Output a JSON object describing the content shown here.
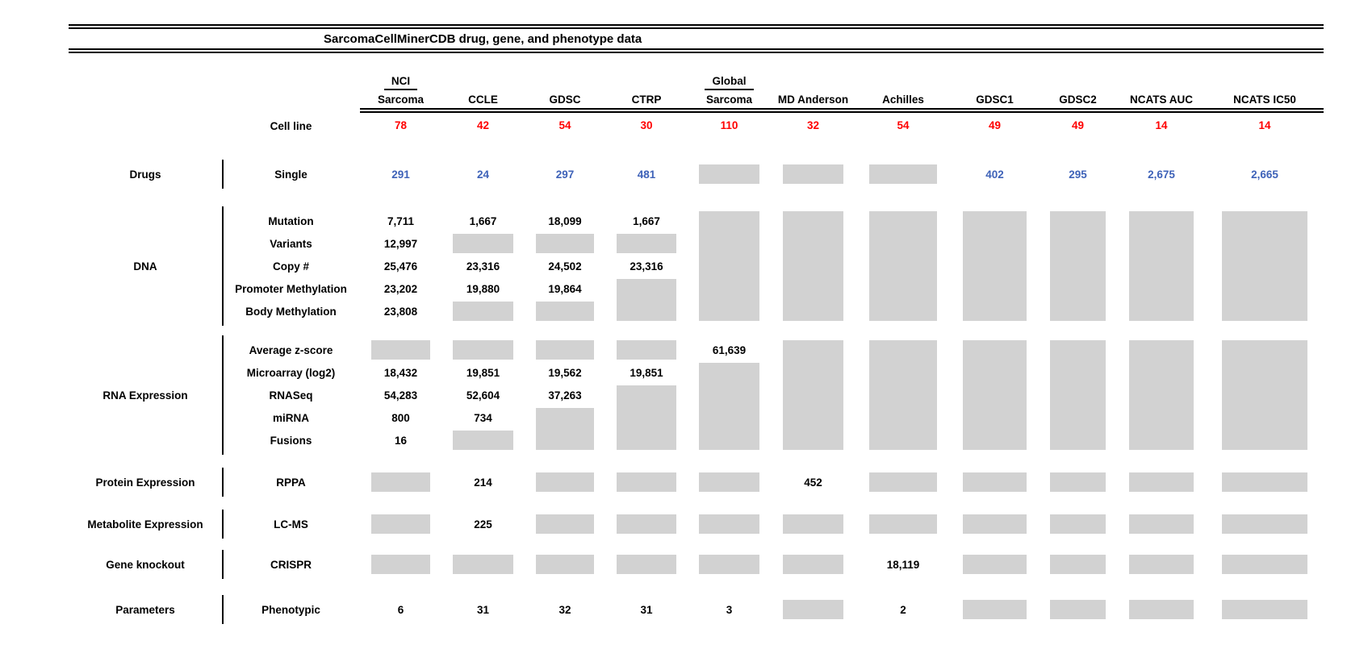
{
  "title": "SarcomaCellMinerCDB drug, gene, and phenotype data",
  "colors": {
    "cell_line_count_red": "#FF0000",
    "drug_count_blue": "#3E62B8",
    "availability_box_gray": "#D2D2D2"
  },
  "chart_data": {
    "type": "table",
    "title": "SarcomaCellMinerCDB drug, gene, and phenotype data",
    "cell_line_label": "Cell line",
    "columns": [
      {
        "group": "NCI",
        "name": "Sarcoma",
        "cell_lines": "78"
      },
      {
        "group": "",
        "name": "CCLE",
        "cell_lines": "42"
      },
      {
        "group": "",
        "name": "GDSC",
        "cell_lines": "54"
      },
      {
        "group": "",
        "name": "CTRP",
        "cell_lines": "30"
      },
      {
        "group": "Global",
        "name": "Sarcoma",
        "cell_lines": "110"
      },
      {
        "group": "",
        "name": "MD Anderson",
        "cell_lines": "32"
      },
      {
        "group": "",
        "name": "Achilles",
        "cell_lines": "54"
      },
      {
        "group": "",
        "name": "GDSC1",
        "cell_lines": "49"
      },
      {
        "group": "",
        "name": "GDSC2",
        "cell_lines": "49"
      },
      {
        "group": "",
        "name": "NCATS AUC",
        "cell_lines": "14"
      },
      {
        "group": "",
        "name": "NCATS IC50",
        "cell_lines": "14"
      }
    ],
    "sections": [
      {
        "category": "Drugs",
        "value_style": "blue",
        "rows": [
          {
            "label": "Single",
            "values": [
              "291",
              "24",
              "297",
              "481",
              null,
              null,
              null,
              "402",
              "295",
              "2,675",
              "2,665"
            ]
          }
        ],
        "boxes": [
          {
            "col": 4,
            "row": 0,
            "span": 1
          },
          {
            "col": 5,
            "row": 0,
            "span": 1
          },
          {
            "col": 6,
            "row": 0,
            "span": 1
          }
        ]
      },
      {
        "category": "DNA",
        "value_style": "black",
        "rows": [
          {
            "label": "Mutation",
            "values": [
              "7,711",
              "1,667",
              "18,099",
              "1,667",
              null,
              null,
              null,
              null,
              null,
              null,
              null
            ]
          },
          {
            "label": "Variants",
            "values": [
              "12,997",
              null,
              null,
              null,
              null,
              null,
              null,
              null,
              null,
              null,
              null
            ]
          },
          {
            "label": "Copy #",
            "values": [
              "25,476",
              "23,316",
              "24,502",
              "23,316",
              null,
              null,
              null,
              null,
              null,
              null,
              null
            ]
          },
          {
            "label": "Promoter Methylation",
            "values": [
              "23,202",
              "19,880",
              "19,864",
              null,
              null,
              null,
              null,
              null,
              null,
              null,
              null
            ]
          },
          {
            "label": "Body Methylation",
            "values": [
              "23,808",
              null,
              null,
              null,
              null,
              null,
              null,
              null,
              null,
              null,
              null
            ]
          }
        ],
        "boxes": [
          {
            "col": 1,
            "row": 1,
            "span": 1
          },
          {
            "col": 2,
            "row": 1,
            "span": 1
          },
          {
            "col": 3,
            "row": 1,
            "span": 1
          },
          {
            "col": 1,
            "row": 4,
            "span": 1
          },
          {
            "col": 2,
            "row": 4,
            "span": 1
          },
          {
            "col": 3,
            "row": 3,
            "span": 2
          },
          {
            "col": 4,
            "row": 0,
            "span": 5
          },
          {
            "col": 5,
            "row": 0,
            "span": 5
          },
          {
            "col": 6,
            "row": 0,
            "span": 5
          },
          {
            "col": 7,
            "row": 0,
            "span": 5
          },
          {
            "col": 8,
            "row": 0,
            "span": 5
          },
          {
            "col": 9,
            "row": 0,
            "span": 5
          },
          {
            "col": 10,
            "row": 0,
            "span": 5
          }
        ]
      },
      {
        "category": "RNA Expression",
        "value_style": "black",
        "rows": [
          {
            "label": "Average z-score",
            "values": [
              null,
              null,
              null,
              null,
              "61,639",
              null,
              null,
              null,
              null,
              null,
              null
            ]
          },
          {
            "label": "Microarray (log2)",
            "values": [
              "18,432",
              "19,851",
              "19,562",
              "19,851",
              null,
              null,
              null,
              null,
              null,
              null,
              null
            ]
          },
          {
            "label": "RNASeq",
            "values": [
              "54,283",
              "52,604",
              "37,263",
              null,
              null,
              null,
              null,
              null,
              null,
              null,
              null
            ]
          },
          {
            "label": "miRNA",
            "values": [
              "800",
              "734",
              null,
              null,
              null,
              null,
              null,
              null,
              null,
              null,
              null
            ]
          },
          {
            "label": "Fusions",
            "values": [
              "16",
              null,
              null,
              null,
              null,
              null,
              null,
              null,
              null,
              null,
              null
            ]
          }
        ],
        "boxes": [
          {
            "col": 0,
            "row": 0,
            "span": 1
          },
          {
            "col": 1,
            "row": 0,
            "span": 1
          },
          {
            "col": 2,
            "row": 0,
            "span": 1
          },
          {
            "col": 3,
            "row": 0,
            "span": 1
          },
          {
            "col": 1,
            "row": 4,
            "span": 1
          },
          {
            "col": 2,
            "row": 3,
            "span": 2
          },
          {
            "col": 3,
            "row": 2,
            "span": 3
          },
          {
            "col": 4,
            "row": 1,
            "span": 4
          },
          {
            "col": 5,
            "row": 0,
            "span": 5
          },
          {
            "col": 6,
            "row": 0,
            "span": 5
          },
          {
            "col": 7,
            "row": 0,
            "span": 5
          },
          {
            "col": 8,
            "row": 0,
            "span": 5
          },
          {
            "col": 9,
            "row": 0,
            "span": 5
          },
          {
            "col": 10,
            "row": 0,
            "span": 5
          }
        ]
      },
      {
        "category": "Protein Expression",
        "value_style": "black",
        "rows": [
          {
            "label": "RPPA",
            "values": [
              null,
              "214",
              null,
              null,
              null,
              "452",
              null,
              null,
              null,
              null,
              null
            ]
          }
        ],
        "boxes": [
          {
            "col": 0,
            "row": 0,
            "span": 1
          },
          {
            "col": 2,
            "row": 0,
            "span": 1
          },
          {
            "col": 3,
            "row": 0,
            "span": 1
          },
          {
            "col": 4,
            "row": 0,
            "span": 1
          },
          {
            "col": 6,
            "row": 0,
            "span": 1
          },
          {
            "col": 7,
            "row": 0,
            "span": 1
          },
          {
            "col": 8,
            "row": 0,
            "span": 1
          },
          {
            "col": 9,
            "row": 0,
            "span": 1
          },
          {
            "col": 10,
            "row": 0,
            "span": 1
          }
        ]
      },
      {
        "category": "Metabolite Expression",
        "value_style": "black",
        "rows": [
          {
            "label": "LC-MS",
            "values": [
              null,
              "225",
              null,
              null,
              null,
              null,
              null,
              null,
              null,
              null,
              null
            ]
          }
        ],
        "boxes": [
          {
            "col": 0,
            "row": 0,
            "span": 1
          },
          {
            "col": 2,
            "row": 0,
            "span": 1
          },
          {
            "col": 3,
            "row": 0,
            "span": 1
          },
          {
            "col": 4,
            "row": 0,
            "span": 1
          },
          {
            "col": 5,
            "row": 0,
            "span": 1
          },
          {
            "col": 6,
            "row": 0,
            "span": 1
          },
          {
            "col": 7,
            "row": 0,
            "span": 1
          },
          {
            "col": 8,
            "row": 0,
            "span": 1
          },
          {
            "col": 9,
            "row": 0,
            "span": 1
          },
          {
            "col": 10,
            "row": 0,
            "span": 1
          }
        ]
      },
      {
        "category": "Gene knockout",
        "value_style": "black",
        "rows": [
          {
            "label": "CRISPR",
            "values": [
              null,
              null,
              null,
              null,
              null,
              null,
              "18,119",
              null,
              null,
              null,
              null
            ]
          }
        ],
        "boxes": [
          {
            "col": 0,
            "row": 0,
            "span": 1
          },
          {
            "col": 1,
            "row": 0,
            "span": 1
          },
          {
            "col": 2,
            "row": 0,
            "span": 1
          },
          {
            "col": 3,
            "row": 0,
            "span": 1
          },
          {
            "col": 4,
            "row": 0,
            "span": 1
          },
          {
            "col": 5,
            "row": 0,
            "span": 1
          },
          {
            "col": 7,
            "row": 0,
            "span": 1
          },
          {
            "col": 8,
            "row": 0,
            "span": 1
          },
          {
            "col": 9,
            "row": 0,
            "span": 1
          },
          {
            "col": 10,
            "row": 0,
            "span": 1
          }
        ]
      },
      {
        "category": "Parameters",
        "value_style": "black",
        "rows": [
          {
            "label": "Phenotypic",
            "values": [
              "6",
              "31",
              "32",
              "31",
              "3",
              null,
              "2",
              null,
              null,
              null,
              null
            ]
          }
        ],
        "boxes": [
          {
            "col": 5,
            "row": 0,
            "span": 1
          },
          {
            "col": 7,
            "row": 0,
            "span": 1
          },
          {
            "col": 8,
            "row": 0,
            "span": 1
          },
          {
            "col": 9,
            "row": 0,
            "span": 1
          },
          {
            "col": 10,
            "row": 0,
            "span": 1
          }
        ]
      }
    ]
  }
}
